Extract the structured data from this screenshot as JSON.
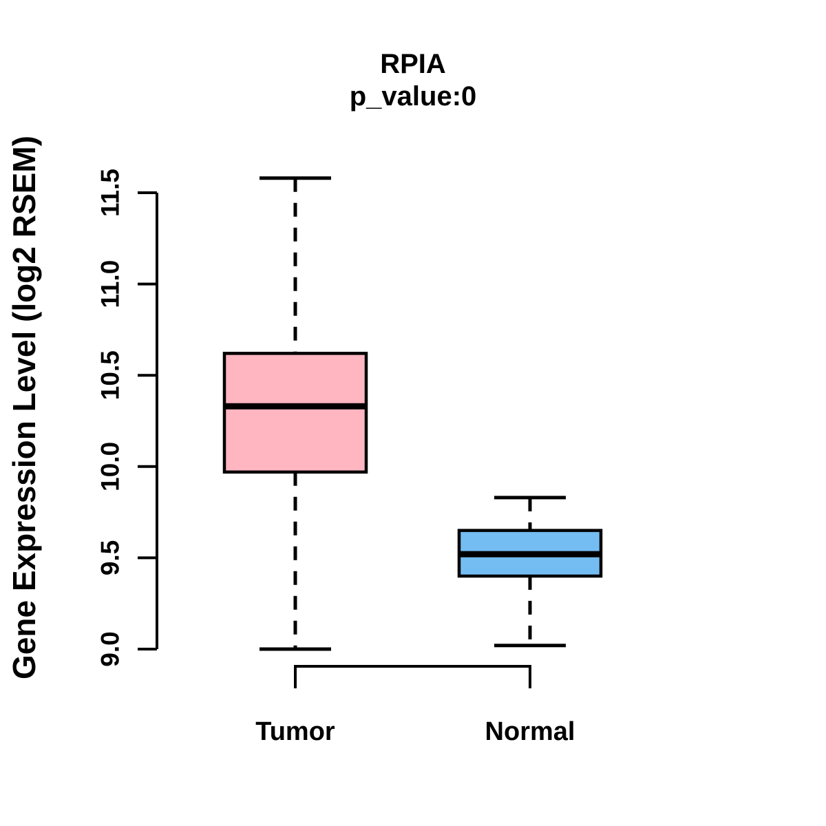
{
  "chart_data": {
    "type": "boxplot",
    "title": "RPIA",
    "subtitle": "p_value:0",
    "ylabel": "Gene Expression Level (log2 RSEM)",
    "xlabel": "",
    "categories": [
      "Tumor",
      "Normal"
    ],
    "y_ticks": [
      9.0,
      9.5,
      10.0,
      10.5,
      11.0,
      11.5
    ],
    "y_tick_labels": [
      "9.0",
      "9.5",
      "10.0",
      "10.5",
      "11.0",
      "11.5"
    ],
    "ylim": [
      9.0,
      11.6
    ],
    "grid": false,
    "legend": false,
    "whisker_style": "dashed",
    "series": [
      {
        "name": "Tumor",
        "lower_whisker": 9.0,
        "q1": 9.97,
        "median": 10.33,
        "q3": 10.62,
        "upper_whisker": 11.58,
        "fill_color": "#FFB6C1"
      },
      {
        "name": "Normal",
        "lower_whisker": 9.02,
        "q1": 9.4,
        "median": 9.52,
        "q3": 9.65,
        "upper_whisker": 9.83,
        "fill_color": "#74BDF2"
      }
    ],
    "box_border_color": "#000000",
    "median_color": "#000000",
    "axis_color": "#000000"
  }
}
